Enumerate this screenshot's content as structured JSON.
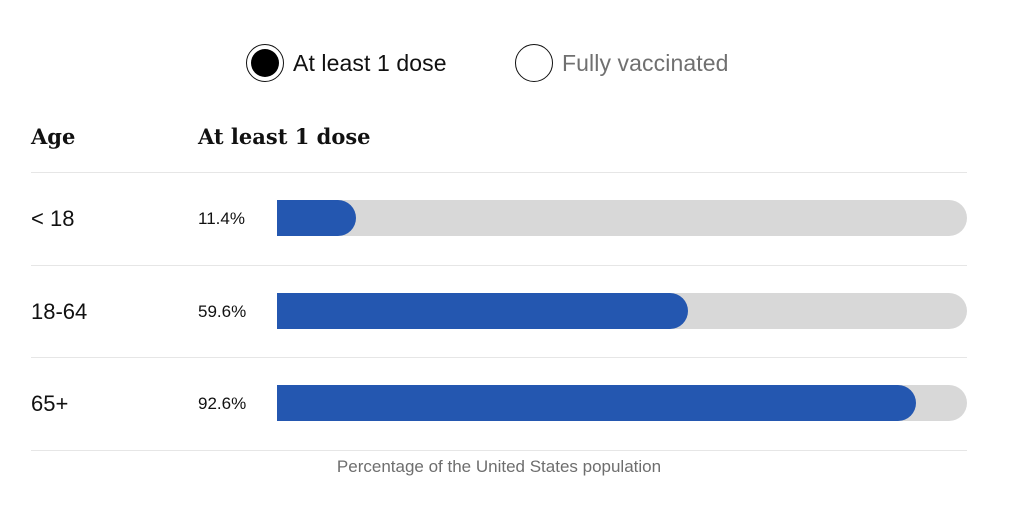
{
  "toggles": [
    {
      "label": "At least 1 dose",
      "selected": true
    },
    {
      "label": "Fully vaccinated",
      "selected": false
    }
  ],
  "table": {
    "col_age": "Age",
    "col_metric": "At least 1 dose"
  },
  "rows": [
    {
      "age": "< 18",
      "pct_label": "11.4%",
      "value": 11.4
    },
    {
      "age": "18-64",
      "pct_label": "59.6%",
      "value": 59.6
    },
    {
      "age": "65+",
      "pct_label": "92.6%",
      "value": 92.6
    }
  ],
  "caption": "Percentage of the United States population",
  "colors": {
    "fill": "#2457b0",
    "track": "#d8d8d8"
  },
  "chart_data": {
    "type": "bar",
    "orientation": "horizontal",
    "title": "At least 1 dose",
    "categories": [
      "< 18",
      "18-64",
      "65+"
    ],
    "values": [
      11.4,
      59.6,
      92.6
    ],
    "xlabel": "Percentage of the United States population",
    "ylabel": "Age",
    "xlim": [
      0,
      100
    ],
    "grid": false,
    "legend": {
      "options": [
        "At least 1 dose",
        "Fully vaccinated"
      ],
      "selected": "At least 1 dose",
      "position": "top"
    }
  }
}
